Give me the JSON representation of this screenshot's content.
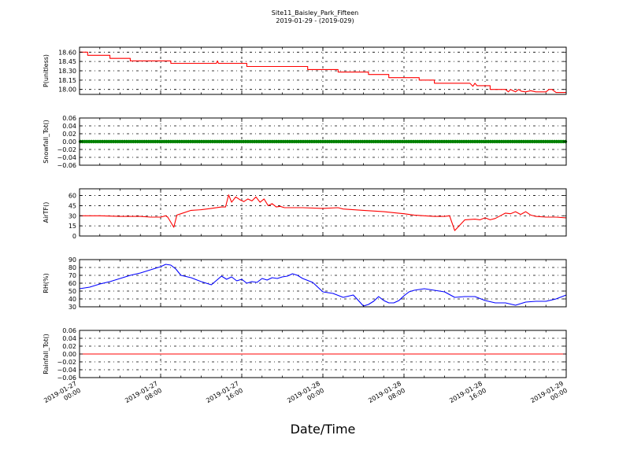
{
  "chart_data": {
    "type": "line",
    "title": "Site11_Baisley_Park_Fifteen",
    "subtitle": "2019-01-29 - (2019-029)",
    "xlabel": "Date/Time",
    "grid": true,
    "x_ticks": [
      [
        "2019-01-27",
        "00:00"
      ],
      [
        "2019-01-27",
        "08:00"
      ],
      [
        "2019-01-27",
        "16:00"
      ],
      [
        "2019-01-28",
        "00:00"
      ],
      [
        "2019-01-28",
        "08:00"
      ],
      [
        "2019-01-28",
        "16:00"
      ],
      [
        "2019-01-29",
        "00:00"
      ]
    ],
    "xlim_hours": [
      0,
      48
    ],
    "panels": [
      {
        "ylabel": "P(unitless)",
        "color": "#ff0000",
        "ylim": [
          17.92,
          18.68
        ],
        "yticks": [
          "18.60",
          "18.45",
          "18.30",
          "18.15",
          "18.00"
        ],
        "ytick_values": [
          18.6,
          18.45,
          18.3,
          18.15,
          18.0
        ],
        "style": "line",
        "x": [
          0,
          0.8,
          0.8,
          3.0,
          3.0,
          5.0,
          5.0,
          9.0,
          9.0,
          13.5,
          13.6,
          13.7,
          16.5,
          16.5,
          22.5,
          22.5,
          25.5,
          25.5,
          28.5,
          28.5,
          30.5,
          30.5,
          33.5,
          33.5,
          35.0,
          35.0,
          38.5,
          38.8,
          39.0,
          39.2,
          40.5,
          40.5,
          42.0,
          42.3,
          42.5,
          43.0,
          43.3,
          43.6,
          44.0,
          44.5,
          45.0,
          45.5,
          46.0,
          46.3,
          46.6,
          47.0,
          47.3,
          48.0
        ],
        "y": [
          18.6,
          18.6,
          18.55,
          18.55,
          18.5,
          18.5,
          18.46,
          18.46,
          18.42,
          18.42,
          18.46,
          18.42,
          18.42,
          18.37,
          18.37,
          18.32,
          18.32,
          18.28,
          18.28,
          18.24,
          18.24,
          18.19,
          18.19,
          18.15,
          18.15,
          18.1,
          18.1,
          18.05,
          18.1,
          18.06,
          18.06,
          18.0,
          18.0,
          17.96,
          18.0,
          17.96,
          18.0,
          17.97,
          17.96,
          17.98,
          17.96,
          17.96,
          17.96,
          18.0,
          18.0,
          17.95,
          17.95,
          17.95
        ]
      },
      {
        "ylabel": "Snowfall_Tot()",
        "color": "#008000",
        "ylim": [
          -0.06,
          0.06
        ],
        "yticks": [
          "0.06",
          "0.04",
          "0.02",
          "0.00",
          "−0.02",
          "−0.04",
          "−0.06"
        ],
        "ytick_values": [
          0.06,
          0.04,
          0.02,
          0.0,
          -0.02,
          -0.04,
          -0.06
        ],
        "style": "markers",
        "constant_value": 0.0
      },
      {
        "ylabel": "AirTF()",
        "color": "#ff0000",
        "ylim": [
          0,
          70
        ],
        "yticks": [
          "60",
          "45",
          "30",
          "15",
          "0"
        ],
        "ytick_values": [
          60,
          45,
          30,
          15,
          0
        ],
        "style": "line",
        "x": [
          0,
          2,
          4,
          6,
          7,
          8,
          8.5,
          8.7,
          9.3,
          9.6,
          10,
          11,
          12,
          13,
          14,
          14.4,
          14.7,
          15,
          15.4,
          15.8,
          16.2,
          16.6,
          17,
          17.4,
          17.8,
          18.2,
          18.6,
          19,
          19.4,
          19.8,
          20.2,
          21,
          22,
          24,
          25.5,
          26,
          28,
          30,
          32,
          33,
          34,
          35,
          36,
          36.5,
          37,
          38,
          39,
          39.5,
          40,
          40.5,
          41,
          41.5,
          42,
          42.5,
          43,
          43.5,
          44,
          44.5,
          45,
          46,
          47,
          48
        ],
        "y": [
          30,
          30,
          29,
          29,
          28,
          28,
          30,
          28,
          13,
          31,
          33,
          38,
          39,
          41,
          43,
          43,
          61,
          50,
          58,
          54,
          51,
          55,
          52,
          58,
          50,
          55,
          45,
          48,
          43,
          44,
          42,
          42,
          42,
          41,
          42,
          40,
          38,
          36,
          33,
          31,
          30,
          29,
          29,
          30,
          8,
          24,
          25,
          24,
          27,
          24,
          26,
          30,
          34,
          33,
          36,
          32,
          36,
          31,
          29,
          28,
          28,
          27
        ]
      },
      {
        "ylabel": "RH(%)",
        "color": "#0000ff",
        "ylim": [
          30,
          90
        ],
        "yticks": [
          "90",
          "80",
          "70",
          "60",
          "50",
          "40",
          "30"
        ],
        "ytick_values": [
          90,
          80,
          70,
          60,
          50,
          40,
          30
        ],
        "style": "line",
        "x": [
          0,
          1,
          2,
          3,
          4,
          5,
          6,
          7,
          8,
          8.5,
          9,
          9.5,
          10,
          11,
          12,
          12.5,
          13,
          14,
          14.5,
          15,
          15.5,
          16,
          16.5,
          17,
          17.5,
          18,
          18.5,
          19,
          19.5,
          20,
          20.5,
          21,
          21.5,
          22,
          23,
          24,
          25,
          26,
          27,
          27.5,
          28,
          28.5,
          29,
          29.5,
          30,
          30.5,
          31,
          31.5,
          32,
          32.5,
          33,
          34,
          35,
          36,
          37,
          38,
          39,
          40,
          41,
          42,
          43,
          44,
          45,
          46,
          47,
          48
        ],
        "y": [
          53,
          55,
          59,
          62,
          66,
          70,
          73,
          77,
          81,
          84,
          83,
          78,
          70,
          67,
          62,
          60,
          58,
          69,
          65,
          68,
          63,
          65,
          60,
          62,
          61,
          66,
          64,
          67,
          66,
          68,
          69,
          72,
          70,
          66,
          61,
          49,
          47,
          42,
          45,
          38,
          31,
          33,
          37,
          43,
          38,
          35,
          35,
          38,
          44,
          49,
          51,
          53,
          51,
          49,
          42,
          43,
          43,
          38,
          35,
          35,
          32,
          36,
          37,
          37,
          40,
          45
        ]
      },
      {
        "ylabel": "Rainfall_Tot()",
        "color": "#ff0000",
        "ylim": [
          -0.06,
          0.06
        ],
        "yticks": [
          "0.06",
          "0.04",
          "0.02",
          "0.00",
          "−0.02",
          "−0.04",
          "−0.06"
        ],
        "ytick_values": [
          0.06,
          0.04,
          0.02,
          0.0,
          -0.02,
          -0.04,
          -0.06
        ],
        "style": "line",
        "x": [
          0,
          48
        ],
        "y": [
          0,
          0
        ]
      }
    ]
  }
}
